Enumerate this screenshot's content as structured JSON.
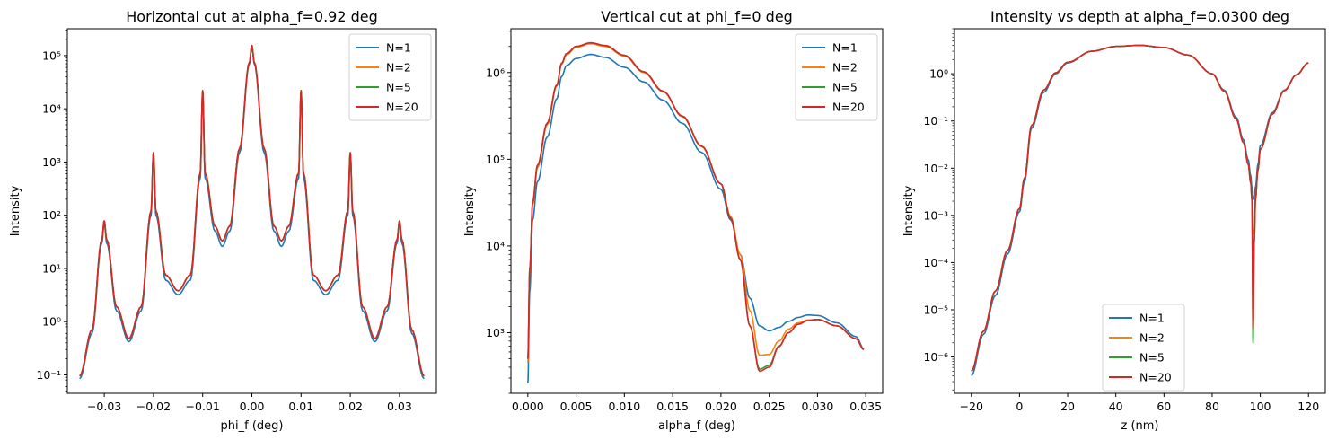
{
  "chart_data": [
    {
      "type": "line",
      "title": "Horizontal cut at alpha_f=0.92 deg",
      "xlabel": "phi_f (deg)",
      "ylabel": "Intensity",
      "xlim": [
        -0.0375,
        0.0375
      ],
      "ylim": [
        0.045,
        320000
      ],
      "yscale": "log",
      "grid": false,
      "legend": "upper right",
      "xticks": [
        -0.03,
        -0.02,
        -0.01,
        0.0,
        0.01,
        0.02,
        0.03
      ],
      "xtick_labels": [
        "−0.03",
        "−0.02",
        "−0.01",
        "0.00",
        "0.01",
        "0.02",
        "0.03"
      ],
      "yticks": [
        0.1,
        1,
        10,
        100,
        1000,
        10000,
        100000
      ],
      "ytick_labels": [
        "10⁻¹",
        "10⁰",
        "10¹",
        "10²",
        "10³",
        "10⁴",
        "10⁵"
      ],
      "series": [
        {
          "name": "N=1",
          "color": "#1f77b4",
          "x": [
            -0.035,
            -0.0325,
            -0.0305,
            -0.03,
            -0.0295,
            -0.0275,
            -0.025,
            -0.0225,
            -0.0205,
            -0.02,
            -0.0195,
            -0.0175,
            -0.015,
            -0.0125,
            -0.0105,
            -0.01,
            -0.0095,
            -0.0075,
            -0.006,
            -0.0045,
            -0.0025,
            -0.0005,
            0,
            0.0005,
            0.0025,
            0.0045,
            0.006,
            0.0075,
            0.0095,
            0.01,
            0.0105,
            0.0125,
            0.015,
            0.0175,
            0.0195,
            0.02,
            0.0205,
            0.0225,
            0.025,
            0.0275,
            0.0295,
            0.03,
            0.0305,
            0.0325,
            0.035
          ],
          "y": [
            0.085,
            0.6,
            30,
            70,
            30,
            1.6,
            0.42,
            1.6,
            100,
            1300,
            100,
            6,
            3.2,
            6,
            500,
            20000,
            500,
            50,
            26,
            50,
            1500,
            70000,
            150000,
            70000,
            1500,
            50,
            26,
            50,
            500,
            20000,
            500,
            6,
            3.2,
            6,
            100,
            1300,
            100,
            1.6,
            0.42,
            1.6,
            30,
            70,
            30,
            0.6,
            0.085
          ]
        },
        {
          "name": "N=2",
          "color": "#ff7f0e",
          "x": [
            -0.035,
            -0.0325,
            -0.0305,
            -0.03,
            -0.0295,
            -0.0275,
            -0.025,
            -0.0225,
            -0.0205,
            -0.02,
            -0.0195,
            -0.0175,
            -0.015,
            -0.0125,
            -0.0105,
            -0.01,
            -0.0095,
            -0.0075,
            -0.006,
            -0.0045,
            -0.0025,
            -0.0005,
            0,
            0.0005,
            0.0025,
            0.0045,
            0.006,
            0.0075,
            0.0095,
            0.01,
            0.0105,
            0.0125,
            0.015,
            0.0175,
            0.0195,
            0.02,
            0.0205,
            0.0225,
            0.025,
            0.0275,
            0.0295,
            0.03,
            0.0305,
            0.0325,
            0.035
          ],
          "y": [
            0.095,
            0.7,
            35,
            78,
            35,
            1.9,
            0.48,
            1.9,
            120,
            1500,
            120,
            7.5,
            3.8,
            7.5,
            620,
            22000,
            620,
            62,
            33,
            62,
            1800,
            75000,
            155000,
            75000,
            1800,
            62,
            33,
            62,
            620,
            22000,
            620,
            7.5,
            3.8,
            7.5,
            120,
            1500,
            120,
            1.9,
            0.48,
            1.9,
            35,
            78,
            35,
            0.7,
            0.095
          ]
        },
        {
          "name": "N=5",
          "color": "#2ca02c",
          "x": [
            -0.035,
            -0.0325,
            -0.0305,
            -0.03,
            -0.0295,
            -0.0275,
            -0.025,
            -0.0225,
            -0.0205,
            -0.02,
            -0.0195,
            -0.0175,
            -0.015,
            -0.0125,
            -0.0105,
            -0.01,
            -0.0095,
            -0.0075,
            -0.006,
            -0.0045,
            -0.0025,
            -0.0005,
            0,
            0.0005,
            0.0025,
            0.0045,
            0.006,
            0.0075,
            0.0095,
            0.01,
            0.0105,
            0.0125,
            0.015,
            0.0175,
            0.0195,
            0.02,
            0.0205,
            0.0225,
            0.025,
            0.0275,
            0.0295,
            0.03,
            0.0305,
            0.0325,
            0.035
          ],
          "y": [
            0.095,
            0.7,
            35,
            78,
            35,
            1.9,
            0.48,
            1.9,
            120,
            1500,
            120,
            7.5,
            3.8,
            7.5,
            620,
            22000,
            620,
            62,
            33,
            62,
            1800,
            75000,
            155000,
            75000,
            1800,
            62,
            33,
            62,
            620,
            22000,
            620,
            7.5,
            3.8,
            7.5,
            120,
            1500,
            120,
            1.9,
            0.48,
            1.9,
            35,
            78,
            35,
            0.7,
            0.095
          ]
        },
        {
          "name": "N=20",
          "color": "#d62728",
          "x": [
            -0.035,
            -0.0325,
            -0.0305,
            -0.03,
            -0.0295,
            -0.0275,
            -0.025,
            -0.0225,
            -0.0205,
            -0.02,
            -0.0195,
            -0.0175,
            -0.015,
            -0.0125,
            -0.0105,
            -0.01,
            -0.0095,
            -0.0075,
            -0.006,
            -0.0045,
            -0.0025,
            -0.0005,
            0,
            0.0005,
            0.0025,
            0.0045,
            0.006,
            0.0075,
            0.0095,
            0.01,
            0.0105,
            0.0125,
            0.015,
            0.0175,
            0.0195,
            0.02,
            0.0205,
            0.0225,
            0.025,
            0.0275,
            0.0295,
            0.03,
            0.0305,
            0.0325,
            0.035
          ],
          "y": [
            0.095,
            0.7,
            35,
            78,
            35,
            1.9,
            0.48,
            1.9,
            120,
            1500,
            120,
            7.5,
            3.8,
            7.5,
            620,
            22000,
            620,
            62,
            33,
            62,
            1800,
            75000,
            155000,
            75000,
            1800,
            62,
            33,
            62,
            620,
            22000,
            620,
            7.5,
            3.8,
            7.5,
            120,
            1500,
            120,
            1.9,
            0.48,
            1.9,
            35,
            78,
            35,
            0.7,
            0.095
          ]
        }
      ]
    },
    {
      "type": "line",
      "title": "Vertical cut at phi_f=0 deg",
      "xlabel": "alpha_f (deg)",
      "ylabel": "Intensity",
      "xlim": [
        -0.00175,
        0.03675
      ],
      "ylim": [
        200,
        3200000
      ],
      "yscale": "log",
      "grid": false,
      "legend": "upper right",
      "xticks": [
        0.0,
        0.005,
        0.01,
        0.015,
        0.02,
        0.025,
        0.03,
        0.035
      ],
      "xtick_labels": [
        "0.000",
        "0.005",
        "0.010",
        "0.015",
        "0.020",
        "0.025",
        "0.030",
        "0.035"
      ],
      "yticks": [
        1000,
        10000,
        100000,
        1000000
      ],
      "ytick_labels": [
        "10³",
        "10⁴",
        "10⁵",
        "10⁶"
      ],
      "series": [
        {
          "name": "N=1",
          "color": "#1f77b4",
          "x": [
            0.0,
            0.0002,
            0.0005,
            0.001,
            0.002,
            0.003,
            0.0035,
            0.004,
            0.005,
            0.0065,
            0.008,
            0.01,
            0.012,
            0.014,
            0.016,
            0.018,
            0.02,
            0.021,
            0.022,
            0.023,
            0.024,
            0.025,
            0.026,
            0.027,
            0.028,
            0.029,
            0.03,
            0.032,
            0.034,
            0.0348
          ],
          "y": [
            260,
            3000,
            20000,
            55000,
            180000,
            500000,
            900000,
            1200000,
            1450000,
            1620000,
            1500000,
            1150000,
            780000,
            480000,
            260000,
            120000,
            45000,
            20000,
            8000,
            2500,
            1200,
            1050,
            1150,
            1350,
            1500,
            1600,
            1580,
            1300,
            900,
            650
          ]
        },
        {
          "name": "N=2",
          "color": "#ff7f0e",
          "x": [
            0.0,
            0.0002,
            0.0005,
            0.001,
            0.002,
            0.003,
            0.0035,
            0.004,
            0.005,
            0.0065,
            0.008,
            0.01,
            0.012,
            0.014,
            0.016,
            0.018,
            0.02,
            0.021,
            0.022,
            0.023,
            0.024,
            0.025,
            0.026,
            0.027,
            0.028,
            0.029,
            0.03,
            0.032,
            0.034,
            0.0348
          ],
          "y": [
            450,
            5000,
            30000,
            80000,
            250000,
            700000,
            1250000,
            1600000,
            1950000,
            2150000,
            2000000,
            1550000,
            1000000,
            600000,
            310000,
            140000,
            52000,
            22000,
            8000,
            1800,
            550,
            560,
            800,
            1100,
            1300,
            1400,
            1420,
            1200,
            850,
            640
          ]
        },
        {
          "name": "N=5",
          "color": "#2ca02c",
          "x": [
            0.0,
            0.0002,
            0.0005,
            0.001,
            0.002,
            0.003,
            0.0035,
            0.004,
            0.005,
            0.0065,
            0.008,
            0.01,
            0.012,
            0.014,
            0.016,
            0.018,
            0.02,
            0.021,
            0.022,
            0.023,
            0.024,
            0.025,
            0.026,
            0.027,
            0.028,
            0.029,
            0.03,
            0.032,
            0.034,
            0.0348
          ],
          "y": [
            500,
            5500,
            32000,
            85000,
            260000,
            720000,
            1280000,
            1650000,
            2000000,
            2200000,
            2050000,
            1580000,
            1020000,
            610000,
            315000,
            142000,
            52000,
            21000,
            7000,
            1200,
            380,
            420,
            700,
            1000,
            1250,
            1380,
            1420,
            1200,
            850,
            640
          ]
        },
        {
          "name": "N=20",
          "color": "#d62728",
          "x": [
            0.0,
            0.0002,
            0.0005,
            0.001,
            0.002,
            0.003,
            0.0035,
            0.004,
            0.005,
            0.0065,
            0.008,
            0.01,
            0.012,
            0.014,
            0.016,
            0.018,
            0.02,
            0.021,
            0.022,
            0.023,
            0.024,
            0.025,
            0.026,
            0.027,
            0.028,
            0.029,
            0.03,
            0.032,
            0.034,
            0.0348
          ],
          "y": [
            500,
            5500,
            32000,
            85000,
            260000,
            720000,
            1280000,
            1650000,
            2000000,
            2200000,
            2050000,
            1580000,
            1020000,
            610000,
            315000,
            142000,
            52000,
            21000,
            7000,
            1200,
            360,
            400,
            690,
            1000,
            1250,
            1380,
            1420,
            1200,
            850,
            640
          ]
        }
      ]
    },
    {
      "type": "line",
      "title": "Intensity vs depth at alpha_f=0.0300 deg",
      "xlabel": "z (nm)",
      "ylabel": "Intensity",
      "xlim": [
        -27,
        127
      ],
      "ylim": [
        1.7e-07,
        9
      ],
      "yscale": "log",
      "grid": false,
      "legend": "lower center",
      "xticks": [
        -20,
        0,
        20,
        40,
        60,
        80,
        100,
        120
      ],
      "xtick_labels": [
        "−20",
        "0",
        "20",
        "40",
        "60",
        "80",
        "100",
        "120"
      ],
      "yticks": [
        1e-06,
        1e-05,
        0.0001,
        0.001,
        0.01,
        0.1,
        1
      ],
      "ytick_labels": [
        "10⁻⁶",
        "10⁻⁵",
        "10⁻⁴",
        "10⁻³",
        "10⁻²",
        "10⁻¹",
        "10⁰"
      ],
      "series": [
        {
          "name": "N=1",
          "color": "#1f77b4",
          "x": [
            -20,
            -15,
            -10,
            -5,
            0,
            2,
            5,
            10,
            15,
            20,
            30,
            40,
            50,
            60,
            70,
            80,
            85,
            90,
            93,
            95,
            96,
            96.5,
            97,
            97.5,
            98,
            99,
            100,
            105,
            110,
            115,
            120
          ],
          "y": [
            4e-07,
            3e-06,
            2e-05,
            0.00015,
            0.0012,
            0.005,
            0.07,
            0.4,
            1.0,
            1.7,
            3.0,
            3.8,
            4.0,
            3.6,
            2.5,
            1.0,
            0.45,
            0.12,
            0.04,
            0.015,
            0.007,
            0.004,
            0.0025,
            0.0022,
            0.004,
            0.012,
            0.03,
            0.15,
            0.45,
            0.95,
            1.7
          ]
        },
        {
          "name": "N=2",
          "color": "#ff7f0e",
          "x": [
            -20,
            -15,
            -10,
            -5,
            0,
            2,
            5,
            10,
            15,
            20,
            30,
            40,
            50,
            60,
            70,
            80,
            85,
            90,
            93,
            95,
            96,
            96.5,
            97,
            97.5,
            98,
            99,
            100,
            105,
            110,
            115,
            120
          ],
          "y": [
            5e-07,
            3.5e-06,
            2.5e-05,
            0.00018,
            0.0014,
            0.006,
            0.08,
            0.45,
            1.05,
            1.75,
            3.0,
            3.8,
            4.0,
            3.6,
            2.5,
            1.0,
            0.43,
            0.11,
            0.035,
            0.012,
            0.005,
            0.0025,
            0.0004,
            0.0005,
            0.0025,
            0.009,
            0.025,
            0.14,
            0.44,
            0.95,
            1.7
          ]
        },
        {
          "name": "N=5",
          "color": "#2ca02c",
          "x": [
            -20,
            -15,
            -10,
            -5,
            0,
            2,
            5,
            10,
            15,
            20,
            30,
            40,
            50,
            60,
            70,
            80,
            85,
            90,
            93,
            95,
            96,
            96.5,
            97,
            97.5,
            98,
            99,
            100,
            105,
            110,
            115,
            120
          ],
          "y": [
            5e-07,
            3.5e-06,
            2.5e-05,
            0.00018,
            0.0014,
            0.006,
            0.08,
            0.45,
            1.05,
            1.75,
            3.0,
            3.8,
            4.0,
            3.6,
            2.5,
            1.0,
            0.43,
            0.11,
            0.035,
            0.012,
            0.005,
            0.0022,
            2e-06,
            0.0003,
            0.0022,
            0.009,
            0.025,
            0.14,
            0.44,
            0.95,
            1.7
          ]
        },
        {
          "name": "N=20",
          "color": "#d62728",
          "x": [
            -20,
            -15,
            -10,
            -5,
            0,
            2,
            5,
            10,
            15,
            20,
            30,
            40,
            50,
            60,
            70,
            80,
            85,
            90,
            93,
            95,
            96,
            96.5,
            97,
            97.5,
            98,
            99,
            100,
            105,
            110,
            115,
            120
          ],
          "y": [
            5e-07,
            3.5e-06,
            2.5e-05,
            0.00018,
            0.0014,
            0.006,
            0.08,
            0.45,
            1.05,
            1.75,
            3.0,
            3.8,
            4.0,
            3.6,
            2.5,
            1.0,
            0.43,
            0.11,
            0.035,
            0.012,
            0.005,
            0.0022,
            4e-06,
            0.0003,
            0.0022,
            0.009,
            0.025,
            0.14,
            0.44,
            0.95,
            1.7
          ]
        }
      ]
    }
  ]
}
